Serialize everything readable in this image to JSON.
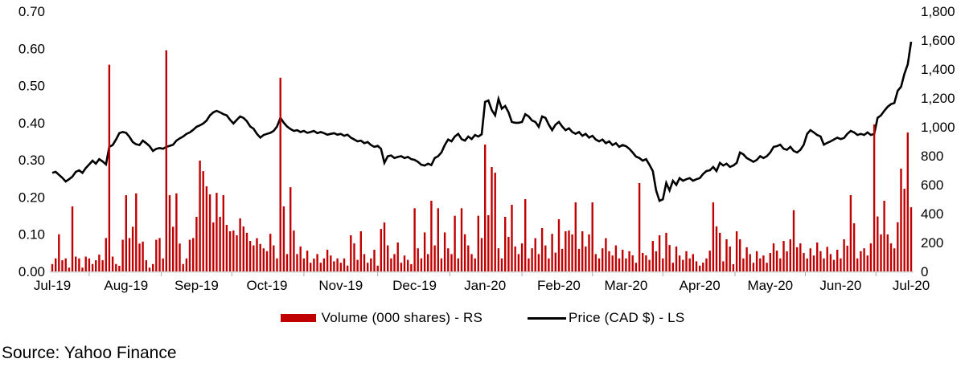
{
  "source_note": "Source: Yahoo Finance",
  "legend": {
    "volume_label": "Volume (000 shares) - RS",
    "price_label": "Price (CAD $) - LS"
  },
  "colors": {
    "volume": "#c00000",
    "price": "#000000",
    "axis_line": "#d6d6d6",
    "tick_mark": "#a6a6a6",
    "text": "#000000"
  },
  "chart_data": {
    "type": "combo",
    "x_tick_labels": [
      "Jul-19",
      "Aug-19",
      "Sep-19",
      "Oct-19",
      "Nov-19",
      "Dec-19",
      "Jan-20",
      "Feb-20",
      "Mar-20",
      "Apr-20",
      "May-20",
      "Jun-20",
      "Jul-20"
    ],
    "x_tick_indices": [
      0,
      22,
      43,
      64,
      86,
      108,
      129,
      151,
      171,
      193,
      214,
      235,
      256
    ],
    "left_axis": {
      "min": 0.0,
      "max": 0.7,
      "step": 0.1,
      "tick_labels": [
        "0.00",
        "0.10",
        "0.20",
        "0.30",
        "0.40",
        "0.50",
        "0.60",
        "0.70"
      ],
      "label": "Price (CAD $)"
    },
    "right_axis": {
      "min": 0,
      "max": 1800,
      "step": 200,
      "tick_labels": [
        "0",
        "200",
        "400",
        "600",
        "800",
        "1,000",
        "1,200",
        "1,400",
        "1,600",
        "1,800"
      ],
      "label": "Volume (000 shares)"
    },
    "grid": false,
    "legend_position": "bottom",
    "series": [
      {
        "name": "Volume (000 shares) - RS",
        "type": "bar",
        "axis": "right",
        "color": "#c00000",
        "values": [
          51,
          90,
          257,
          77,
          90,
          26,
          450,
          103,
          90,
          26,
          103,
          90,
          51,
          77,
          116,
          77,
          231,
          1430,
          103,
          51,
          39,
          219,
          527,
          231,
          309,
          540,
          193,
          206,
          77,
          26,
          51,
          219,
          231,
          90,
          1530,
          527,
          309,
          540,
          193,
          51,
          90,
          219,
          231,
          378,
          767,
          694,
          589,
          533,
          339,
          544,
          378,
          528,
          322,
          278,
          283,
          250,
          367,
          311,
          267,
          211,
          180,
          230,
          190,
          160,
          140,
          260,
          180,
          90,
          1340,
          450,
          120,
          583,
          283,
          120,
          172,
          90,
          144,
          60,
          89,
          120,
          60,
          90,
          150,
          110,
          70,
          90,
          60,
          90,
          40,
          250,
          194,
          80,
          278,
          120,
          60,
          90,
          150,
          40,
          294,
          339,
          180,
          90,
          120,
          200,
          60,
          110,
          80,
          50,
          437,
          160,
          90,
          270,
          120,
          489,
          180,
          437,
          90,
          270,
          160,
          120,
          385,
          90,
          437,
          257,
          180,
          120,
          90,
          385,
          231,
          878,
          389,
          722,
          683,
          160,
          90,
          378,
          239,
          461,
          172,
          120,
          194,
          500,
          90,
          160,
          230,
          120,
          300,
          180,
          90,
          260,
          130,
          361,
          156,
          278,
          283,
          256,
          478,
          156,
          278,
          172,
          256,
          478,
          120,
          90,
          160,
          230,
          140,
          110,
          180,
          90,
          150,
          90,
          140,
          111,
          60,
          611,
          128,
          111,
          80,
          211,
          139,
          250,
          90,
          267,
          183,
          60,
          172,
          110,
          80,
          140,
          90,
          120,
          70,
          40,
          61,
          90,
          144,
          478,
          311,
          267,
          70,
          222,
          172,
          50,
          278,
          222,
          90,
          167,
          120,
          60,
          140,
          90,
          110,
          60,
          128,
          194,
          144,
          90,
          211,
          139,
          222,
          424,
          167,
          194,
          128,
          90,
          160,
          110,
          200,
          140,
          90,
          170,
          120,
          80,
          150,
          90,
          222,
          178,
          528,
          333,
          90,
          140,
          160,
          110,
          194,
          1017,
          380,
          256,
          489,
          256,
          194,
          160,
          340,
          711,
          572,
          961,
          444
        ]
      },
      {
        "name": "Price (CAD $) - LS",
        "type": "line",
        "axis": "left",
        "color": "#000000",
        "values": [
          0.265,
          0.268,
          0.26,
          0.252,
          0.242,
          0.248,
          0.255,
          0.268,
          0.272,
          0.265,
          0.278,
          0.288,
          0.298,
          0.29,
          0.302,
          0.296,
          0.288,
          0.335,
          0.34,
          0.355,
          0.372,
          0.375,
          0.373,
          0.362,
          0.348,
          0.342,
          0.34,
          0.352,
          0.345,
          0.337,
          0.324,
          0.33,
          0.332,
          0.33,
          0.335,
          0.338,
          0.341,
          0.352,
          0.358,
          0.363,
          0.37,
          0.374,
          0.381,
          0.389,
          0.393,
          0.398,
          0.406,
          0.42,
          0.428,
          0.432,
          0.428,
          0.423,
          0.42,
          0.408,
          0.398,
          0.408,
          0.417,
          0.413,
          0.404,
          0.39,
          0.384,
          0.37,
          0.36,
          0.367,
          0.37,
          0.373,
          0.378,
          0.39,
          0.413,
          0.4,
          0.39,
          0.383,
          0.378,
          0.38,
          0.375,
          0.378,
          0.373,
          0.375,
          0.378,
          0.372,
          0.375,
          0.372,
          0.368,
          0.37,
          0.372,
          0.368,
          0.37,
          0.365,
          0.368,
          0.36,
          0.355,
          0.35,
          0.352,
          0.345,
          0.348,
          0.34,
          0.335,
          0.338,
          0.33,
          0.292,
          0.31,
          0.312,
          0.305,
          0.308,
          0.31,
          0.305,
          0.308,
          0.302,
          0.3,
          0.295,
          0.287,
          0.285,
          0.29,
          0.286,
          0.305,
          0.31,
          0.32,
          0.34,
          0.355,
          0.35,
          0.363,
          0.37,
          0.356,
          0.352,
          0.363,
          0.356,
          0.367,
          0.363,
          0.369,
          0.456,
          0.46,
          0.434,
          0.42,
          0.464,
          0.438,
          0.445,
          0.428,
          0.402,
          0.4,
          0.4,
          0.402,
          0.423,
          0.417,
          0.406,
          0.402,
          0.389,
          0.417,
          0.413,
          0.395,
          0.38,
          0.395,
          0.402,
          0.39,
          0.38,
          0.385,
          0.375,
          0.37,
          0.375,
          0.365,
          0.37,
          0.36,
          0.365,
          0.355,
          0.35,
          0.355,
          0.345,
          0.35,
          0.34,
          0.345,
          0.335,
          0.34,
          0.337,
          0.33,
          0.32,
          0.309,
          0.305,
          0.298,
          0.302,
          0.287,
          0.27,
          0.218,
          0.19,
          0.194,
          0.238,
          0.218,
          0.244,
          0.233,
          0.251,
          0.244,
          0.248,
          0.251,
          0.244,
          0.248,
          0.251,
          0.262,
          0.27,
          0.272,
          0.281,
          0.27,
          0.292,
          0.285,
          0.29,
          0.281,
          0.285,
          0.292,
          0.32,
          0.315,
          0.305,
          0.3,
          0.295,
          0.3,
          0.31,
          0.305,
          0.31,
          0.32,
          0.335,
          0.337,
          0.341,
          0.33,
          0.327,
          0.335,
          0.324,
          0.32,
          0.327,
          0.341,
          0.37,
          0.38,
          0.374,
          0.367,
          0.363,
          0.341,
          0.346,
          0.35,
          0.355,
          0.36,
          0.356,
          0.359,
          0.37,
          0.378,
          0.374,
          0.367,
          0.37,
          0.367,
          0.374,
          0.367,
          0.37,
          0.413,
          0.42,
          0.432,
          0.443,
          0.45,
          0.453,
          0.486,
          0.497,
          0.532,
          0.557,
          0.618
        ]
      }
    ]
  }
}
